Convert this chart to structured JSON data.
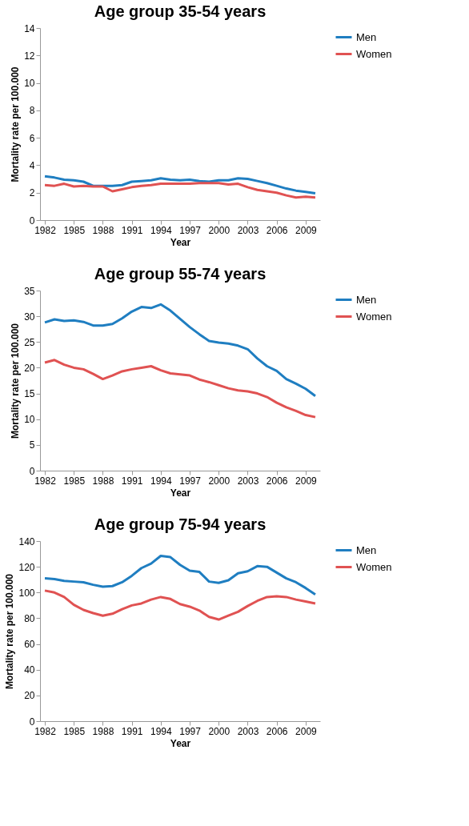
{
  "chart_data": [
    {
      "type": "line",
      "title": "Age group 35-54 years",
      "xlabel": "Year",
      "ylabel": "Mortality rate per 100.000",
      "x": [
        1982,
        1983,
        1984,
        1985,
        1986,
        1987,
        1988,
        1989,
        1990,
        1991,
        1992,
        1993,
        1994,
        1995,
        1996,
        1997,
        1998,
        1999,
        2000,
        2001,
        2002,
        2003,
        2004,
        2005,
        2006,
        2007,
        2008,
        2009,
        2010
      ],
      "xlim": [
        1981.5,
        2010.5
      ],
      "xticks": [
        1982,
        1985,
        1988,
        1991,
        1994,
        1997,
        2000,
        2003,
        2006,
        2009
      ],
      "ylim": [
        0,
        14
      ],
      "yticks": [
        0,
        2,
        4,
        6,
        8,
        10,
        12,
        14
      ],
      "grid": false,
      "legend": "right",
      "line_style": "solid",
      "marker": "none",
      "series": [
        {
          "name": "Men",
          "color": "#1f7ec1",
          "values": [
            3.2,
            3.1,
            2.95,
            2.9,
            2.8,
            2.5,
            2.5,
            2.5,
            2.55,
            2.8,
            2.85,
            2.9,
            3.05,
            2.95,
            2.9,
            2.95,
            2.85,
            2.8,
            2.9,
            2.9,
            3.05,
            3.0,
            2.85,
            2.7,
            2.5,
            2.3,
            2.15,
            2.05,
            1.95
          ]
        },
        {
          "name": "Women",
          "color": "#e05252",
          "values": [
            2.55,
            2.5,
            2.65,
            2.45,
            2.5,
            2.45,
            2.45,
            2.1,
            2.25,
            2.4,
            2.5,
            2.55,
            2.65,
            2.65,
            2.65,
            2.65,
            2.7,
            2.7,
            2.7,
            2.6,
            2.65,
            2.4,
            2.2,
            2.1,
            2.0,
            1.8,
            1.65,
            1.7,
            1.65
          ]
        }
      ]
    },
    {
      "type": "line",
      "title": "Age group 55-74 years",
      "xlabel": "Year",
      "ylabel": "Mortality rate per 100.000",
      "x": [
        1982,
        1983,
        1984,
        1985,
        1986,
        1987,
        1988,
        1989,
        1990,
        1991,
        1992,
        1993,
        1994,
        1995,
        1996,
        1997,
        1998,
        1999,
        2000,
        2001,
        2002,
        2003,
        2004,
        2005,
        2006,
        2007,
        2008,
        2009,
        2010
      ],
      "xlim": [
        1981.5,
        2010.5
      ],
      "xticks": [
        1982,
        1985,
        1988,
        1991,
        1994,
        1997,
        2000,
        2003,
        2006,
        2009
      ],
      "ylim": [
        0,
        35
      ],
      "yticks": [
        0,
        5,
        10,
        15,
        20,
        25,
        30,
        35
      ],
      "grid": false,
      "legend": "right",
      "line_style": "solid",
      "marker": "none",
      "series": [
        {
          "name": "Men",
          "color": "#1f7ec1",
          "values": [
            28.8,
            29.4,
            29.1,
            29.2,
            28.9,
            28.2,
            28.2,
            28.5,
            29.6,
            30.9,
            31.8,
            31.6,
            32.3,
            31.1,
            29.5,
            27.9,
            26.5,
            25.2,
            24.9,
            24.7,
            24.3,
            23.6,
            21.8,
            20.3,
            19.4,
            17.8,
            16.9,
            15.9,
            14.5
          ]
        },
        {
          "name": "Women",
          "color": "#e05252",
          "values": [
            21.0,
            21.5,
            20.6,
            20.0,
            19.7,
            18.8,
            17.8,
            18.5,
            19.3,
            19.7,
            20.0,
            20.3,
            19.5,
            18.9,
            18.7,
            18.5,
            17.7,
            17.2,
            16.6,
            16.0,
            15.6,
            15.4,
            15.0,
            14.3,
            13.2,
            12.3,
            11.6,
            10.8,
            10.4
          ]
        }
      ]
    },
    {
      "type": "line",
      "title": "Age group 75-94 years",
      "xlabel": "Year",
      "ylabel": "Mortality rate per 100.000",
      "x": [
        1982,
        1983,
        1984,
        1985,
        1986,
        1987,
        1988,
        1989,
        1990,
        1991,
        1992,
        1993,
        1994,
        1995,
        1996,
        1997,
        1998,
        1999,
        2000,
        2001,
        2002,
        2003,
        2004,
        2005,
        2006,
        2007,
        2008,
        2009,
        2010
      ],
      "xlim": [
        1981.5,
        2010.5
      ],
      "xticks": [
        1982,
        1985,
        1988,
        1991,
        1994,
        1997,
        2000,
        2003,
        2006,
        2009
      ],
      "ylim": [
        0,
        140
      ],
      "yticks": [
        0,
        20,
        40,
        60,
        80,
        100,
        120,
        140
      ],
      "grid": false,
      "legend": "right",
      "line_style": "solid",
      "marker": "none",
      "series": [
        {
          "name": "Men",
          "color": "#1f7ec1",
          "values": [
            111,
            110.5,
            109,
            108.5,
            108,
            106,
            104.5,
            105,
            108,
            113,
            119,
            122.5,
            128.5,
            127.5,
            121.5,
            117,
            116,
            108.5,
            107.5,
            109.5,
            115,
            116.5,
            120.5,
            120,
            115.5,
            111,
            108,
            103.5,
            98.5
          ]
        },
        {
          "name": "Women",
          "color": "#e05252",
          "values": [
            101.5,
            100,
            96.5,
            90.5,
            86.5,
            84,
            82,
            83.5,
            87,
            90,
            91.5,
            94.5,
            96.5,
            95,
            91,
            89,
            86,
            81,
            79,
            82,
            85,
            89.5,
            93.5,
            96.5,
            97,
            96.5,
            94.5,
            93,
            91.5
          ]
        }
      ]
    }
  ]
}
